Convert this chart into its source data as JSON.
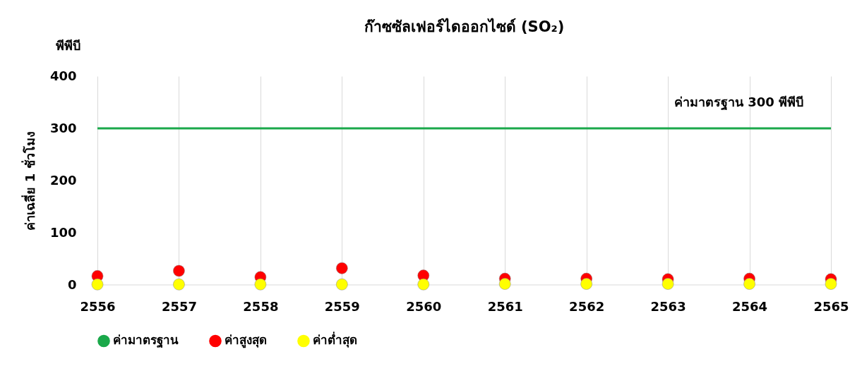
{
  "chart_data": {
    "type": "scatter",
    "title": "ก๊าซซัลเฟอร์ไดออกไซด์ (SO₂)",
    "ylabel": "ค่าเฉลี่ย 1 ชั่วโมง",
    "annotations": [
      "พีพีบี",
      "ค่ามาตรฐาน 300 พีพีบี"
    ],
    "x": [
      2556,
      2557,
      2558,
      2559,
      2560,
      2561,
      2562,
      2563,
      2564,
      2565
    ],
    "xlim": [
      2556,
      2565
    ],
    "xticks": [
      2556,
      2557,
      2558,
      2559,
      2560,
      2561,
      2562,
      2563,
      2564,
      2565
    ],
    "ylim": [
      0,
      400
    ],
    "yticks": [
      0,
      100,
      200,
      300,
      400
    ],
    "grid": "x",
    "legend": "bottom",
    "series": [
      {
        "name": "ค่ามาตรฐาน",
        "type": "line",
        "color": "#1aa84a",
        "x": [
          2556,
          2565
        ],
        "values": [
          300,
          300
        ],
        "line_style": "solid",
        "marker": "none"
      },
      {
        "name": "ค่าสูงสุด",
        "color": "#ff0000",
        "marker": "circle",
        "values": [
          17,
          27,
          15,
          32,
          18,
          12,
          12,
          11,
          12,
          11
        ]
      },
      {
        "name": "ค่าต่ำสุด",
        "color": "#ffff00",
        "marker": "circle",
        "values": [
          1,
          1,
          1,
          1,
          1,
          2,
          2,
          2,
          2,
          2
        ]
      }
    ]
  }
}
